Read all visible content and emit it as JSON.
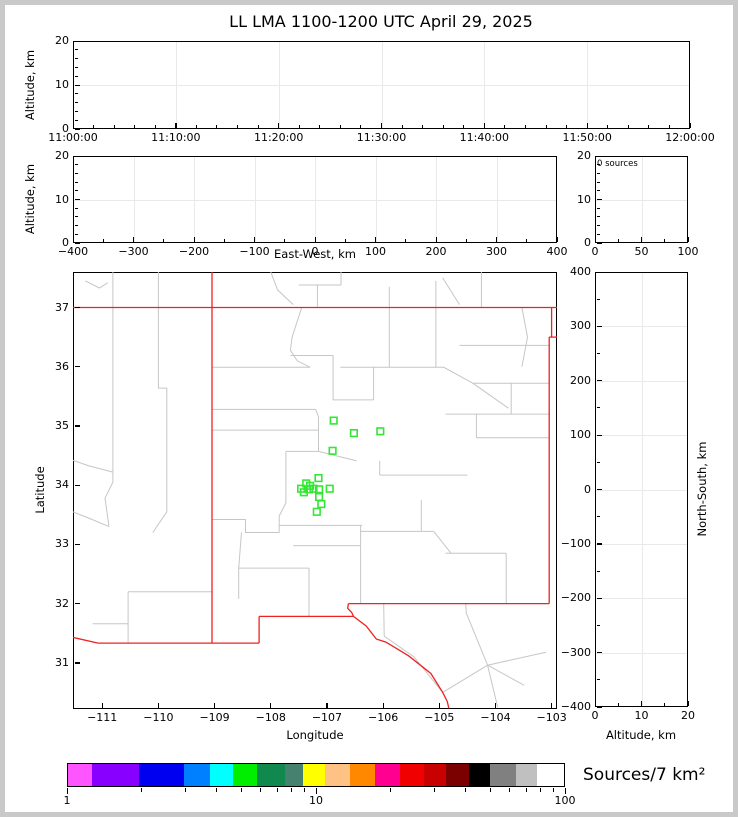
{
  "figure": {
    "title": "LL LMA 1100-1200 UTC April 29, 2025",
    "background": "#ffffff",
    "frame_color": "#000000",
    "grid_color": "#e9e9e9",
    "state_border_color": "#ee2222",
    "county_border_color": "#c6c6c6",
    "source_marker_color": "#35e635"
  },
  "chart_data": [
    {
      "id": "time_height",
      "type": "scatter",
      "xlabel": "",
      "ylabel": "Altitude, km",
      "xlim": [
        0,
        6
      ],
      "ylim": [
        0,
        20
      ],
      "xtick_values": [
        0,
        1,
        2,
        3,
        4,
        5,
        6
      ],
      "xtick_labels": [
        "11:00:00",
        "11:10:00",
        "11:20:00",
        "11:30:00",
        "11:40:00",
        "11:50:00",
        "12:00:00"
      ],
      "ytick_values": [
        0,
        10,
        20
      ],
      "ytick_labels": [
        "0",
        "10",
        "20"
      ],
      "xminor_step": 0.2,
      "yminor_step": 2,
      "grid": true,
      "points": []
    },
    {
      "id": "ew_height",
      "type": "scatter",
      "xlabel": "East-West, km",
      "ylabel": "Altitude, km",
      "xlim": [
        -400,
        400
      ],
      "ylim": [
        0,
        20
      ],
      "xtick_values": [
        -400,
        -300,
        -200,
        -100,
        0,
        100,
        200,
        300,
        400
      ],
      "xtick_labels": [
        "−400",
        "−300",
        "−200",
        "−100",
        "0",
        "100",
        "200",
        "300",
        "400"
      ],
      "ytick_values": [
        0,
        10,
        20
      ],
      "ytick_labels": [
        "0",
        "10",
        "20"
      ],
      "xminor_step": 50,
      "yminor_step": 2,
      "grid": true,
      "points": []
    },
    {
      "id": "alt_histogram",
      "type": "line",
      "annotation": "0 sources",
      "xlabel": "",
      "ylabel": "",
      "xlim": [
        0,
        100
      ],
      "ylim": [
        0,
        20
      ],
      "xtick_values": [
        0,
        50,
        100
      ],
      "xtick_labels": [
        "0",
        "50",
        "100"
      ],
      "ytick_values": [
        0,
        10,
        20
      ],
      "ytick_labels": [
        "0",
        "10",
        "20"
      ],
      "xminor_step": 25,
      "yminor_step": 2,
      "grid": true,
      "points": []
    },
    {
      "id": "plan_view",
      "type": "scatter",
      "xlabel": "Longitude",
      "ylabel": "Latitude",
      "xlim": [
        -111.52,
        -102.905
      ],
      "ylim": [
        30.22,
        37.6
      ],
      "xtick_values": [
        -111,
        -110,
        -109,
        -108,
        -107,
        -106,
        -105,
        -104,
        -103
      ],
      "xtick_labels": [
        "−111",
        "−110",
        "−109",
        "−108",
        "−107",
        "−106",
        "−105",
        "−104",
        "−103"
      ],
      "ytick_values": [
        31,
        32,
        33,
        34,
        35,
        36,
        37
      ],
      "ytick_labels": [
        "31",
        "32",
        "33",
        "34",
        "35",
        "36",
        "37"
      ],
      "grid": false,
      "sources_lonlat": [
        [
          -106.88,
          35.09
        ],
        [
          -106.52,
          34.88
        ],
        [
          -106.05,
          34.91
        ],
        [
          -106.9,
          34.58
        ],
        [
          -107.15,
          34.12
        ],
        [
          -107.37,
          34.03
        ],
        [
          -107.46,
          33.94
        ],
        [
          -107.32,
          33.93
        ],
        [
          -107.24,
          33.94
        ],
        [
          -107.14,
          33.93
        ],
        [
          -106.95,
          33.94
        ],
        [
          -107.41,
          33.88
        ],
        [
          -107.3,
          33.99
        ],
        [
          -107.14,
          33.8
        ],
        [
          -107.1,
          33.68
        ],
        [
          -107.18,
          33.55
        ]
      ],
      "state_borders": [
        [
          [
            -111.52,
            37.0
          ],
          [
            -102.905,
            37.0
          ]
        ],
        [
          [
            -109.045,
            37.6
          ],
          [
            -109.045,
            31.333
          ]
        ],
        [
          [
            -103.002,
            37.0
          ],
          [
            -103.002,
            36.5
          ]
        ],
        [
          [
            -102.905,
            36.5
          ],
          [
            -103.043,
            36.5
          ]
        ],
        [
          [
            -103.043,
            36.5
          ],
          [
            -103.043,
            32.0
          ]
        ],
        [
          [
            -103.043,
            32.0
          ],
          [
            -106.618,
            32.0
          ]
        ],
        [
          [
            -106.618,
            32.0
          ],
          [
            -106.63,
            31.92
          ],
          [
            -106.56,
            31.85
          ],
          [
            -106.528,
            31.783
          ]
        ],
        [
          [
            -106.528,
            31.783
          ],
          [
            -108.208,
            31.783
          ]
        ],
        [
          [
            -108.208,
            31.783
          ],
          [
            -108.208,
            31.333
          ]
        ],
        [
          [
            -108.208,
            31.333
          ],
          [
            -111.074,
            31.333
          ]
        ],
        [
          [
            -111.074,
            31.333
          ],
          [
            -111.52,
            31.43
          ]
        ],
        [
          [
            -106.528,
            31.783
          ],
          [
            -106.3,
            31.62
          ],
          [
            -106.12,
            31.4
          ],
          [
            -105.95,
            31.35
          ],
          [
            -105.55,
            31.12
          ],
          [
            -105.15,
            30.82
          ],
          [
            -104.94,
            30.5
          ],
          [
            -104.86,
            30.35
          ],
          [
            -104.83,
            30.23
          ]
        ]
      ],
      "county_borders": [
        [
          [
            -110.81,
            37.6
          ],
          [
            -110.81,
            34.05
          ],
          [
            -110.95,
            33.78
          ],
          [
            -110.88,
            33.3
          ]
        ],
        [
          [
            -110.0,
            37.6
          ],
          [
            -110.0,
            35.64
          ],
          [
            -109.85,
            35.64
          ],
          [
            -109.85,
            33.55
          ],
          [
            -110.1,
            33.2
          ]
        ],
        [
          [
            -111.52,
            34.42
          ],
          [
            -111.25,
            34.33
          ],
          [
            -110.81,
            34.22
          ]
        ],
        [
          [
            -111.52,
            33.55
          ],
          [
            -111.18,
            33.42
          ],
          [
            -110.88,
            33.3
          ]
        ],
        [
          [
            -110.54,
            32.2
          ],
          [
            -109.045,
            32.2
          ]
        ],
        [
          [
            -110.54,
            32.2
          ],
          [
            -110.54,
            31.333
          ]
        ],
        [
          [
            -111.17,
            31.66
          ],
          [
            -110.54,
            31.66
          ]
        ],
        [
          [
            -108.0,
            37.6
          ],
          [
            -107.88,
            37.3
          ],
          [
            -107.6,
            37.05
          ]
        ],
        [
          [
            -107.17,
            37.38
          ],
          [
            -107.17,
            37.0
          ]
        ],
        [
          [
            -107.5,
            37.38
          ],
          [
            -106.75,
            37.38
          ]
        ],
        [
          [
            -106.75,
            37.6
          ],
          [
            -106.75,
            37.38
          ]
        ],
        [
          [
            -105.89,
            37.35
          ],
          [
            -105.89,
            35.99
          ]
        ],
        [
          [
            -104.94,
            37.5
          ],
          [
            -104.64,
            37.05
          ]
        ],
        [
          [
            -104.25,
            37.6
          ],
          [
            -104.25,
            37.0
          ]
        ],
        [
          [
            -111.3,
            37.45
          ],
          [
            -111.05,
            37.33
          ],
          [
            -110.9,
            37.42
          ]
        ],
        [
          [
            -109.045,
            35.99
          ],
          [
            -107.3,
            35.99
          ]
        ],
        [
          [
            -107.45,
            37.0
          ],
          [
            -107.62,
            36.5
          ],
          [
            -107.65,
            36.28
          ],
          [
            -107.53,
            36.1
          ],
          [
            -107.3,
            35.99
          ]
        ],
        [
          [
            -107.65,
            36.19
          ],
          [
            -106.89,
            36.19
          ]
        ],
        [
          [
            -106.89,
            36.19
          ],
          [
            -106.89,
            35.44
          ],
          [
            -106.17,
            35.44
          ]
        ],
        [
          [
            -109.045,
            35.28
          ],
          [
            -107.2,
            35.28
          ]
        ],
        [
          [
            -107.2,
            35.28
          ],
          [
            -107.15,
            35.15
          ],
          [
            -107.15,
            34.57
          ]
        ],
        [
          [
            -109.045,
            34.93
          ],
          [
            -107.15,
            34.93
          ]
        ],
        [
          [
            -106.17,
            36.0
          ],
          [
            -106.17,
            35.44
          ]
        ],
        [
          [
            -107.73,
            34.57
          ],
          [
            -107.15,
            34.57
          ],
          [
            -106.47,
            34.41
          ]
        ],
        [
          [
            -107.73,
            34.57
          ],
          [
            -107.73,
            33.7
          ],
          [
            -107.85,
            33.48
          ],
          [
            -107.85,
            33.2
          ]
        ],
        [
          [
            -107.85,
            33.32
          ],
          [
            -106.37,
            33.32
          ]
        ],
        [
          [
            -109.045,
            33.42
          ],
          [
            -108.45,
            33.42
          ],
          [
            -108.45,
            33.2
          ],
          [
            -107.85,
            33.2
          ]
        ],
        [
          [
            -108.52,
            33.2
          ],
          [
            -108.57,
            32.6
          ],
          [
            -108.57,
            32.08
          ]
        ],
        [
          [
            -108.57,
            32.6
          ],
          [
            -107.32,
            32.6
          ]
        ],
        [
          [
            -107.32,
            32.6
          ],
          [
            -107.32,
            31.783
          ]
        ],
        [
          [
            -107.6,
            32.98
          ],
          [
            -106.4,
            32.98
          ]
        ],
        [
          [
            -106.4,
            33.32
          ],
          [
            -106.4,
            32.0
          ]
        ],
        [
          [
            -106.4,
            33.22
          ],
          [
            -105.1,
            33.22
          ]
        ],
        [
          [
            -105.32,
            33.75
          ],
          [
            -105.32,
            33.22
          ]
        ],
        [
          [
            -105.1,
            33.22
          ],
          [
            -104.79,
            32.85
          ]
        ],
        [
          [
            -104.89,
            32.85
          ],
          [
            -103.81,
            32.85
          ]
        ],
        [
          [
            -103.81,
            32.85
          ],
          [
            -103.81,
            32.0
          ]
        ],
        [
          [
            -106.06,
            34.17
          ],
          [
            -104.5,
            34.17
          ]
        ],
        [
          [
            -106.06,
            34.41
          ],
          [
            -106.06,
            34.17
          ]
        ],
        [
          [
            -104.89,
            35.2
          ],
          [
            -103.04,
            35.2
          ]
        ],
        [
          [
            -104.34,
            35.2
          ],
          [
            -104.34,
            34.8
          ]
        ],
        [
          [
            -104.34,
            34.8
          ],
          [
            -103.04,
            34.8
          ]
        ],
        [
          [
            -103.72,
            35.72
          ],
          [
            -103.72,
            35.2
          ]
        ],
        [
          [
            -106.76,
            35.99
          ],
          [
            -104.92,
            35.99
          ],
          [
            -104.4,
            35.72
          ]
        ],
        [
          [
            -104.4,
            35.72
          ],
          [
            -103.04,
            35.72
          ]
        ],
        [
          [
            -104.4,
            35.72
          ],
          [
            -103.77,
            35.3
          ]
        ],
        [
          [
            -104.64,
            36.36
          ],
          [
            -103.04,
            36.36
          ]
        ],
        [
          [
            -105.06,
            37.45
          ],
          [
            -105.06,
            35.99
          ]
        ],
        [
          [
            -103.53,
            37.0
          ],
          [
            -103.43,
            36.5
          ],
          [
            -103.53,
            36.0
          ]
        ],
        [
          [
            -105.99,
            32.0
          ],
          [
            -105.98,
            31.45
          ]
        ],
        [
          [
            -105.98,
            31.45
          ],
          [
            -105.45,
            31.1
          ],
          [
            -104.94,
            30.5
          ]
        ],
        [
          [
            -104.53,
            32.0
          ],
          [
            -104.52,
            31.84
          ],
          [
            -104.14,
            30.96
          ]
        ],
        [
          [
            -104.14,
            30.96
          ],
          [
            -103.1,
            31.18
          ]
        ],
        [
          [
            -104.14,
            30.96
          ],
          [
            -103.49,
            30.62
          ]
        ],
        [
          [
            -104.14,
            30.96
          ],
          [
            -103.96,
            30.25
          ]
        ],
        [
          [
            -104.14,
            30.96
          ],
          [
            -104.94,
            30.5
          ]
        ]
      ]
    },
    {
      "id": "ns_height",
      "type": "scatter",
      "xlabel": "Altitude, km",
      "ylabel": "North-South, km",
      "xlim": [
        0,
        20
      ],
      "ylim": [
        -400,
        400
      ],
      "xtick_values": [
        0,
        10,
        20
      ],
      "xtick_labels": [
        "0",
        "10",
        "20"
      ],
      "ytick_values": [
        400,
        300,
        200,
        100,
        0,
        -100,
        -200,
        -300,
        -400
      ],
      "ytick_labels": [
        "400",
        "300",
        "200",
        "100",
        "0",
        "−100",
        "−200",
        "−300",
        "−400"
      ],
      "xminor_step": 5,
      "yminor_step": 50,
      "grid": true,
      "points": []
    },
    {
      "id": "colorbar",
      "type": "colorbar",
      "label": "Sources/7 km²",
      "scale": "log",
      "range": [
        1,
        100
      ],
      "tick_values": [
        1,
        10,
        100
      ],
      "tick_labels": [
        "1",
        "10",
        "100"
      ],
      "segments": [
        {
          "color": "#ff55ff",
          "w": 24
        },
        {
          "color": "#8800ff",
          "w": 47
        },
        {
          "color": "#0000f0",
          "w": 45
        },
        {
          "color": "#0080ff",
          "w": 27
        },
        {
          "color": "#00ffff",
          "w": 23
        },
        {
          "color": "#00ee00",
          "w": 24
        },
        {
          "color": "#11894e",
          "w": 28
        },
        {
          "color": "#45816e",
          "w": 18
        },
        {
          "color": "#ffff00",
          "w": 22
        },
        {
          "color": "#ffc285",
          "w": 25
        },
        {
          "color": "#ff8800",
          "w": 25
        },
        {
          "color": "#ff0090",
          "w": 25
        },
        {
          "color": "#f00000",
          "w": 25
        },
        {
          "color": "#c80000",
          "w": 22
        },
        {
          "color": "#7b0000",
          "w": 23
        },
        {
          "color": "#000000",
          "w": 21
        },
        {
          "color": "#808080",
          "w": 26
        },
        {
          "color": "#c0c0c0",
          "w": 21
        },
        {
          "color": "#ffffff",
          "w": 27
        }
      ]
    }
  ]
}
